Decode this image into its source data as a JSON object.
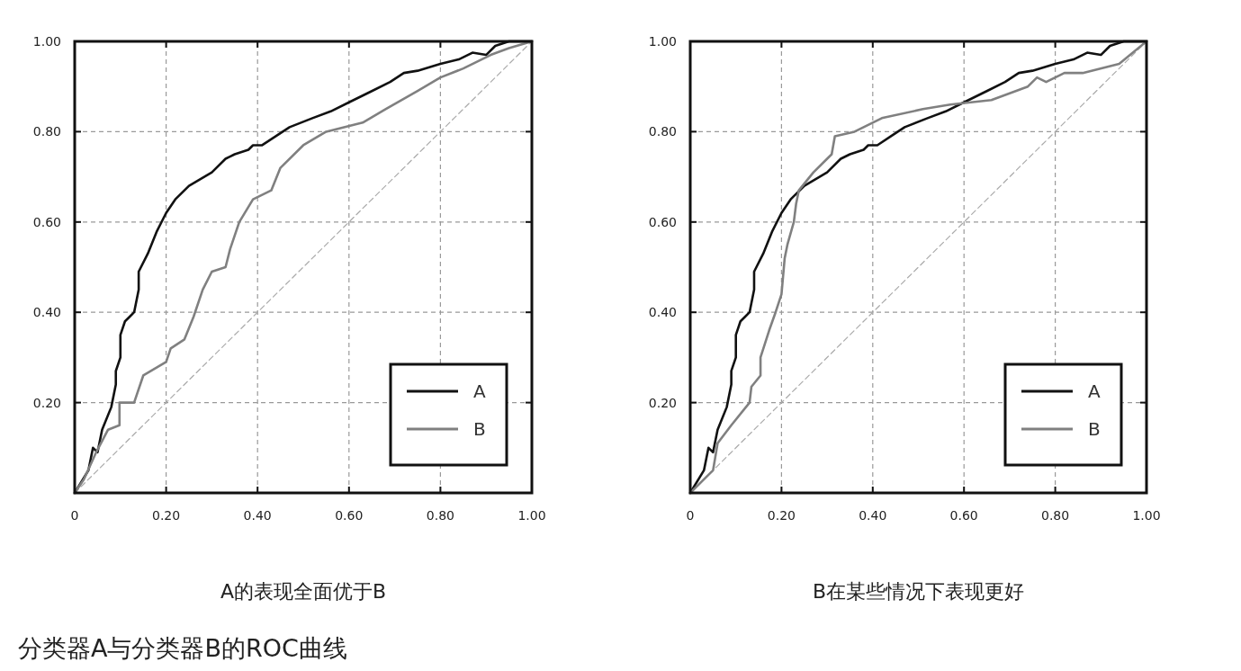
{
  "chart_data": [
    {
      "type": "line",
      "title": "A的表现全面优于B",
      "annotations": [
        "分类器A与分类器B的ROC曲线"
      ],
      "xlim": [
        0,
        1
      ],
      "ylim": [
        0,
        1
      ],
      "xticks": [
        {
          "value": 0,
          "label": "0"
        },
        {
          "value": 0.2,
          "label": "0.20"
        },
        {
          "value": 0.4,
          "label": "0.40"
        },
        {
          "value": 0.6,
          "label": "0.60"
        },
        {
          "value": 0.8,
          "label": "0.80"
        },
        {
          "value": 1,
          "label": "1.00"
        }
      ],
      "yticks": [
        {
          "value": 0,
          "label": null
        },
        {
          "value": 0.2,
          "label": "0.20"
        },
        {
          "value": 0.4,
          "label": "0.40"
        },
        {
          "value": 0.6,
          "label": "0.60"
        },
        {
          "value": 0.8,
          "label": "0.80"
        },
        {
          "value": 1,
          "label": "1.00"
        }
      ],
      "grid": true,
      "legend": "bottom right",
      "series": [
        {
          "color": "#aaaaaa",
          "line_style": "dashed",
          "x": [
            0,
            1
          ],
          "values": [
            0,
            1
          ]
        },
        {
          "name": "A",
          "color": "#111111",
          "x": [
            0,
            0.03,
            0.04,
            0.05,
            0.06,
            0.08,
            0.09,
            0.09,
            0.1,
            0.1,
            0.11,
            0.12,
            0.13,
            0.14,
            0.14,
            0.16,
            0.18,
            0.2,
            0.22,
            0.25,
            0.3,
            0.33,
            0.35,
            0.38,
            0.39,
            0.41,
            0.44,
            0.47,
            0.52,
            0.56,
            0.6,
            0.65,
            0.69,
            0.72,
            0.75,
            0.8,
            0.84,
            0.87,
            0.9,
            0.92,
            0.95,
            1
          ],
          "values": [
            0,
            0.05,
            0.1,
            0.09,
            0.14,
            0.19,
            0.24,
            0.27,
            0.3,
            0.35,
            0.38,
            0.39,
            0.4,
            0.45,
            0.49,
            0.53,
            0.58,
            0.62,
            0.65,
            0.68,
            0.71,
            0.74,
            0.75,
            0.76,
            0.77,
            0.77,
            0.79,
            0.81,
            0.83,
            0.845,
            0.865,
            0.89,
            0.91,
            0.93,
            0.935,
            0.95,
            0.96,
            0.975,
            0.97,
            0.99,
            1,
            1
          ]
        },
        {
          "name": "B",
          "color": "#808080",
          "x": [
            0,
            0.02,
            0.047,
            0.073,
            0.098,
            0.098,
            0.13,
            0.15,
            0.2,
            0.21,
            0.24,
            0.26,
            0.28,
            0.3,
            0.33,
            0.34,
            0.36,
            0.39,
            0.43,
            0.45,
            0.5,
            0.55,
            0.63,
            0.68,
            0.75,
            0.8,
            0.85,
            0.91,
            0.95,
            1
          ],
          "values": [
            0,
            0.03,
            0.09,
            0.14,
            0.15,
            0.2,
            0.2,
            0.26,
            0.29,
            0.32,
            0.34,
            0.39,
            0.45,
            0.49,
            0.5,
            0.54,
            0.6,
            0.65,
            0.67,
            0.72,
            0.77,
            0.8,
            0.82,
            0.85,
            0.89,
            0.92,
            0.94,
            0.97,
            0.985,
            1
          ]
        }
      ]
    },
    {
      "type": "line",
      "title": "B在某些情况下表现更好",
      "xlim": [
        0,
        1
      ],
      "ylim": [
        0,
        1
      ],
      "xticks": [
        {
          "value": 0,
          "label": "0"
        },
        {
          "value": 0.2,
          "label": "0.20"
        },
        {
          "value": 0.4,
          "label": "0.40"
        },
        {
          "value": 0.6,
          "label": "0.60"
        },
        {
          "value": 0.8,
          "label": "0.80"
        },
        {
          "value": 1,
          "label": "1.00"
        }
      ],
      "yticks": [
        {
          "value": 0,
          "label": null
        },
        {
          "value": 0.2,
          "label": "0.20"
        },
        {
          "value": 0.4,
          "label": "0.40"
        },
        {
          "value": 0.6,
          "label": "0.60"
        },
        {
          "value": 0.8,
          "label": "0.80"
        },
        {
          "value": 1,
          "label": "1.00"
        }
      ],
      "grid": true,
      "legend": "bottom right",
      "series": [
        {
          "color": "#aaaaaa",
          "line_style": "dashed",
          "x": [
            0,
            1
          ],
          "values": [
            0,
            1
          ]
        },
        {
          "name": "A",
          "color": "#111111",
          "x": [
            0,
            0.03,
            0.04,
            0.05,
            0.06,
            0.08,
            0.09,
            0.09,
            0.1,
            0.1,
            0.11,
            0.12,
            0.13,
            0.14,
            0.14,
            0.16,
            0.18,
            0.2,
            0.22,
            0.25,
            0.3,
            0.33,
            0.35,
            0.38,
            0.39,
            0.41,
            0.44,
            0.47,
            0.52,
            0.56,
            0.6,
            0.65,
            0.69,
            0.72,
            0.75,
            0.8,
            0.84,
            0.87,
            0.9,
            0.92,
            0.95,
            1
          ],
          "values": [
            0,
            0.05,
            0.1,
            0.09,
            0.14,
            0.19,
            0.24,
            0.27,
            0.3,
            0.35,
            0.38,
            0.39,
            0.4,
            0.45,
            0.49,
            0.53,
            0.58,
            0.62,
            0.65,
            0.68,
            0.71,
            0.74,
            0.75,
            0.76,
            0.77,
            0.77,
            0.79,
            0.81,
            0.83,
            0.845,
            0.865,
            0.89,
            0.91,
            0.93,
            0.935,
            0.95,
            0.96,
            0.975,
            0.97,
            0.99,
            1,
            1
          ]
        },
        {
          "name": "B",
          "color": "#808080",
          "x": [
            0,
            0.05,
            0.06,
            0.09,
            0.13,
            0.134,
            0.154,
            0.154,
            0.173,
            0.187,
            0.2,
            0.207,
            0.213,
            0.227,
            0.232,
            0.238,
            0.27,
            0.31,
            0.317,
            0.36,
            0.42,
            0.51,
            0.57,
            0.66,
            0.74,
            0.76,
            0.78,
            0.82,
            0.86,
            0.94,
            1
          ],
          "values": [
            0,
            0.05,
            0.11,
            0.15,
            0.2,
            0.235,
            0.26,
            0.3,
            0.36,
            0.4,
            0.44,
            0.52,
            0.55,
            0.6,
            0.64,
            0.67,
            0.71,
            0.75,
            0.79,
            0.8,
            0.83,
            0.85,
            0.86,
            0.87,
            0.9,
            0.92,
            0.91,
            0.93,
            0.93,
            0.95,
            1
          ]
        }
      ]
    }
  ]
}
